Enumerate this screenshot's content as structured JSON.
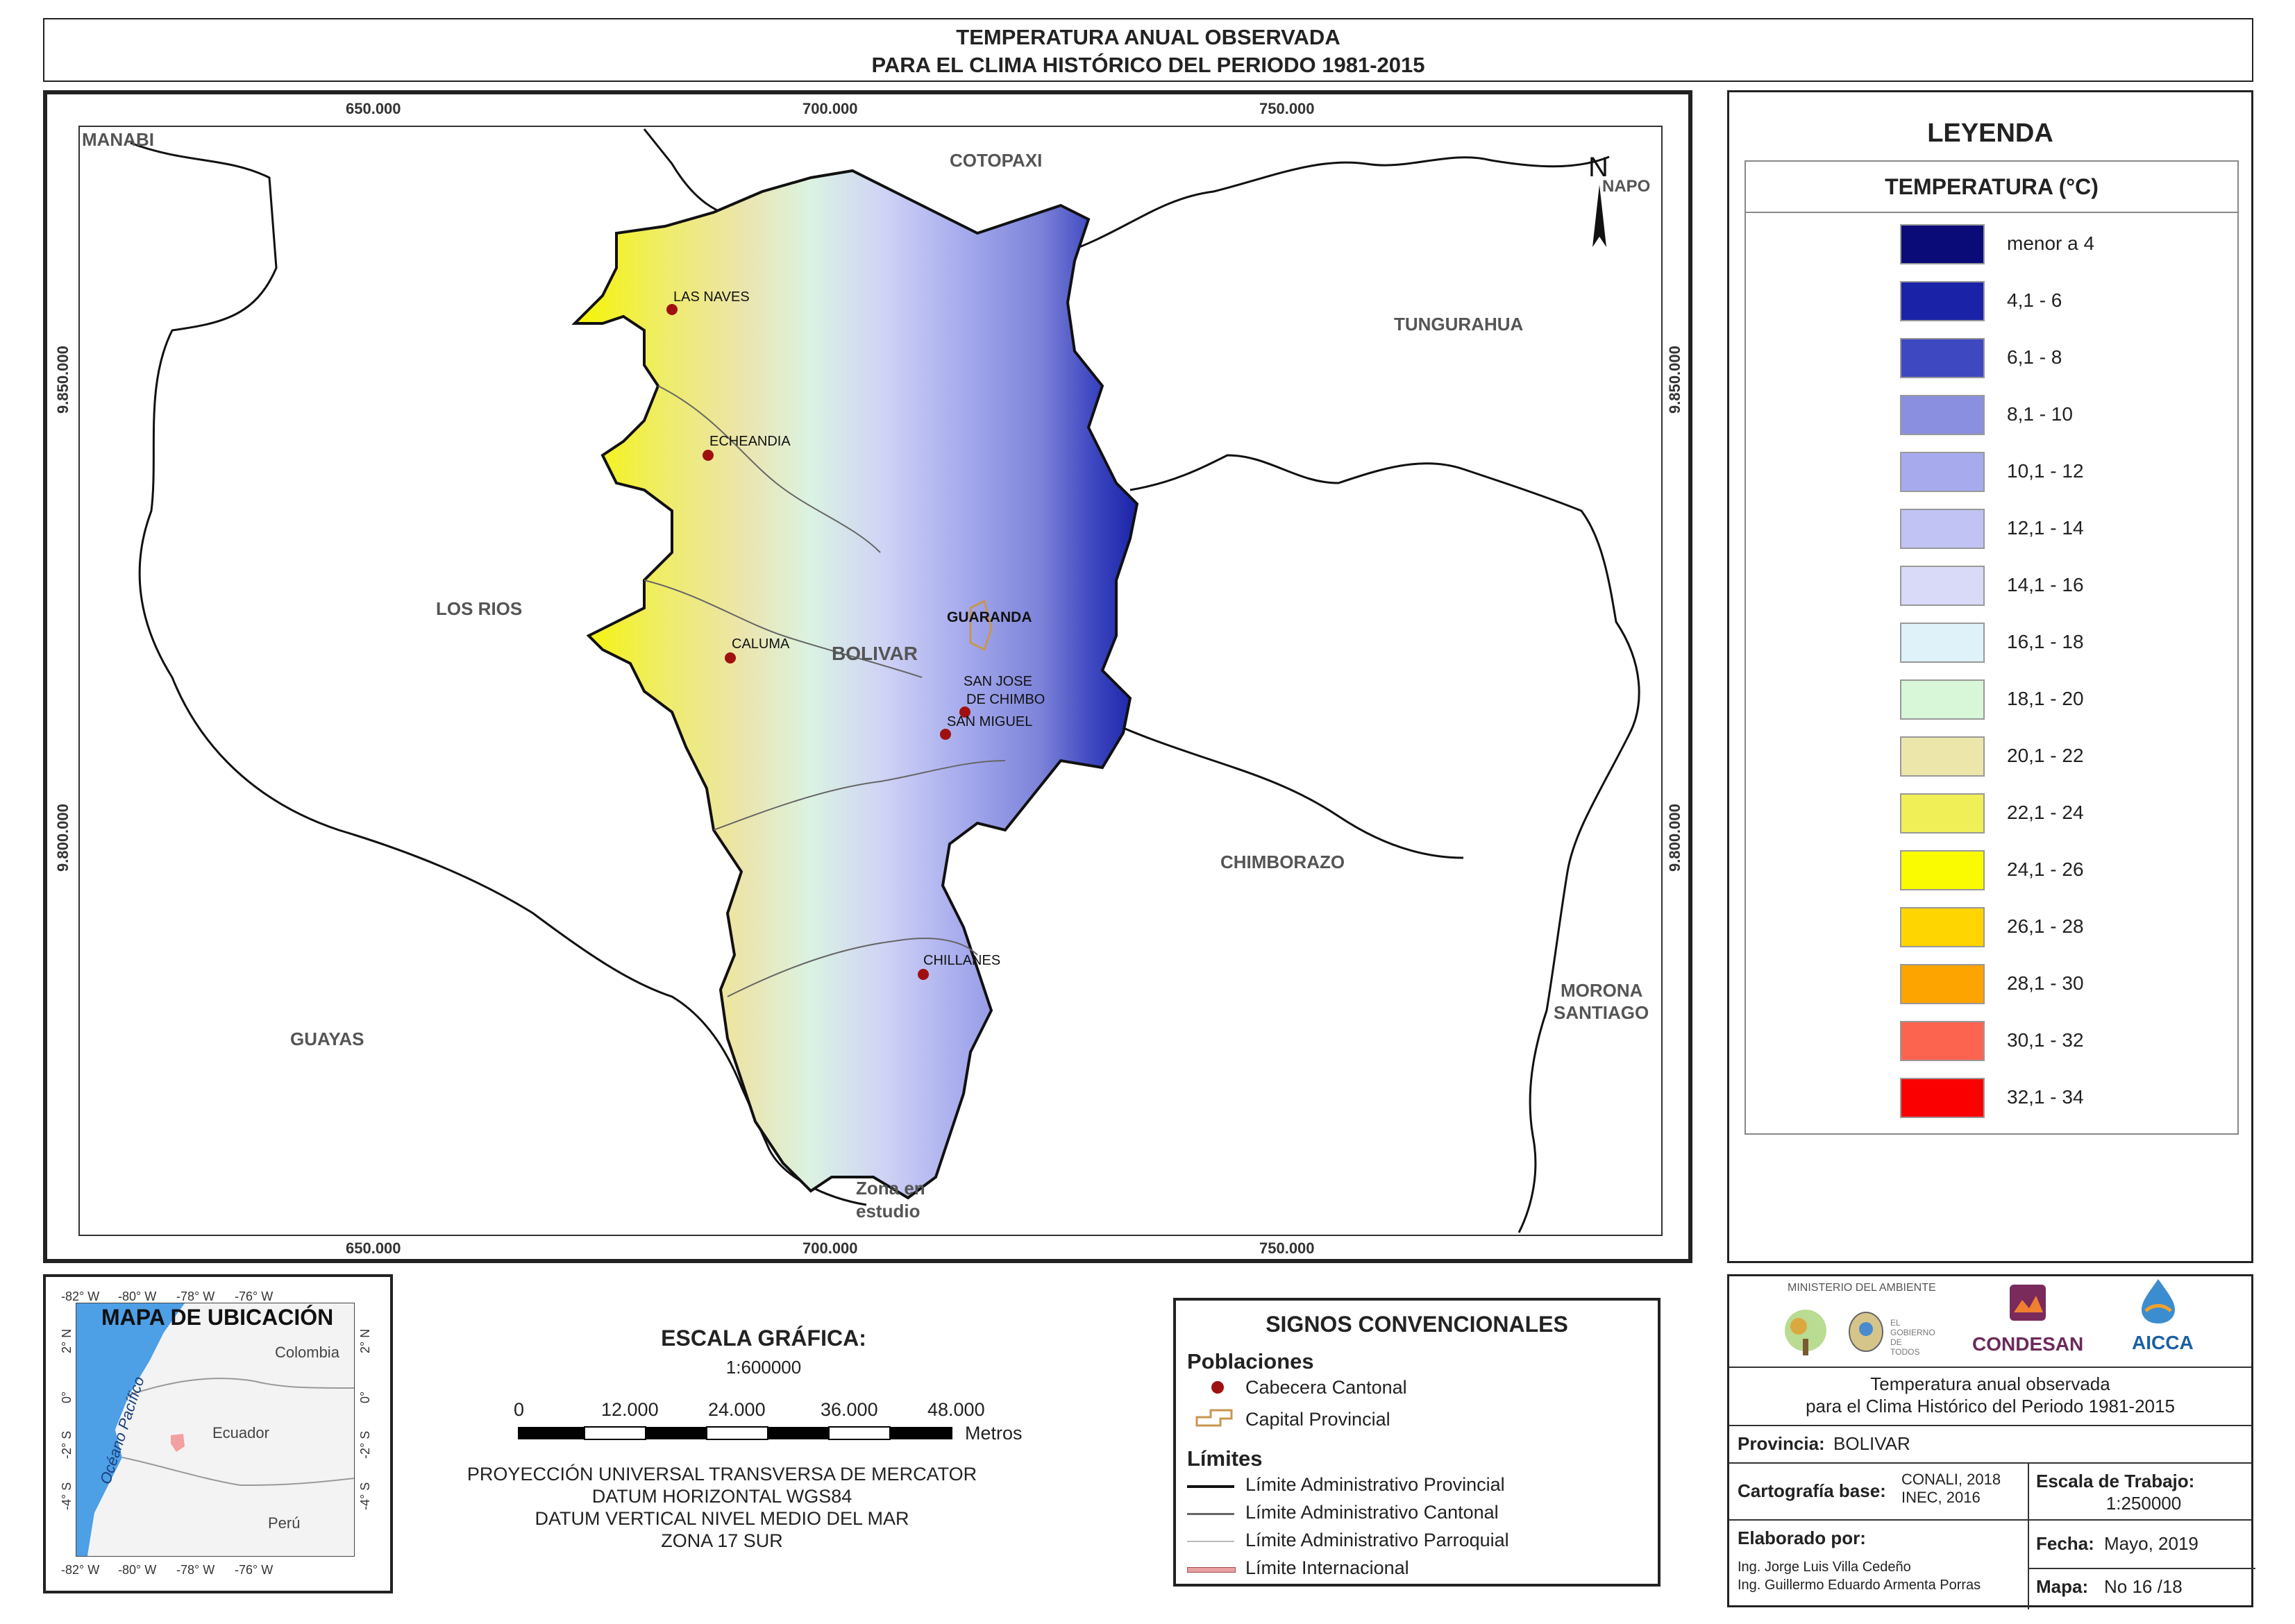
{
  "title": {
    "line1": "TEMPERATURA ANUAL OBSERVADA",
    "line2": "PARA EL CLIMA HISTÓRICO DEL PERIODO 1981-2015"
  },
  "map": {
    "x_coords": [
      "650.000",
      "700.000",
      "750.000"
    ],
    "y_coords": [
      "9.850.000",
      "9.800.000"
    ],
    "north": "N",
    "regions": [
      "MANABI",
      "COTOPAXI",
      "NAPO",
      "TUNGURAHUA",
      "LOS RIOS",
      "BOLIVAR",
      "CHIMBORAZO",
      "MORONA SANTIAGO",
      "GUAYAS"
    ],
    "region_morona_line1": "MORONA",
    "region_morona_line2": "SANTIAGO",
    "zone_line1": "Zona en",
    "zone_line2": "estudio",
    "capital": "GUARANDA",
    "towns": [
      "LAS NAVES",
      "ECHEANDIA",
      "CALUMA",
      "SAN JOSE",
      "DE CHIMBO",
      "SAN MIGUEL",
      "CHILLANES"
    ]
  },
  "legend": {
    "title": "LEYENDA",
    "subtitle": "TEMPERATURA (°C)",
    "items": [
      {
        "label": "menor a 4",
        "color": "#0a0a78"
      },
      {
        "label": "4,1 - 6",
        "color": "#1a23a8"
      },
      {
        "label": "6,1 - 8",
        "color": "#3e48c0"
      },
      {
        "label": "8,1 - 10",
        "color": "#8a8fe0"
      },
      {
        "label": "10,1 - 12",
        "color": "#a7abee"
      },
      {
        "label": "12,1 - 14",
        "color": "#c1c3f4"
      },
      {
        "label": "14,1 - 16",
        "color": "#d9daf7"
      },
      {
        "label": "16,1 - 18",
        "color": "#dff2fa"
      },
      {
        "label": "18,1 - 20",
        "color": "#d8f6d8"
      },
      {
        "label": "20,1 - 22",
        "color": "#ece6ab"
      },
      {
        "label": "22,1 - 24",
        "color": "#f1ef57"
      },
      {
        "label": "24,1 - 26",
        "color": "#fbfb00"
      },
      {
        "label": "26,1 - 28",
        "color": "#fed500"
      },
      {
        "label": "28,1 - 30",
        "color": "#fea400"
      },
      {
        "label": "30,1 - 32",
        "color": "#fd6450"
      },
      {
        "label": "32,1 - 34",
        "color": "#fb0000"
      }
    ]
  },
  "location_map": {
    "title": "MAPA DE UBICACIÓN",
    "lon_ticks": [
      "-82° W",
      "-80° W",
      "-78° W",
      "-76° W"
    ],
    "lat_ticks": [
      "2° N",
      "0°",
      "-2° S",
      "-4° S"
    ],
    "ocean": "Océano Pacífico",
    "countries": [
      "Colombia",
      "Ecuador",
      "Perú"
    ]
  },
  "scale": {
    "title": "ESCALA GRÁFICA:",
    "ratio": "1:600000",
    "ticks": [
      "0",
      "12.000",
      "24.000",
      "36.000",
      "48.000"
    ],
    "unit": "Metros",
    "projection": [
      "PROYECCIÓN UNIVERSAL TRANSVERSA DE MERCATOR",
      "DATUM HORIZONTAL WGS84",
      "DATUM VERTICAL NIVEL MEDIO DEL MAR",
      "ZONA 17 SUR"
    ]
  },
  "signs": {
    "title": "SIGNOS CONVENCIONALES",
    "populations_heading": "Poblaciones",
    "cabecera": "Cabecera Cantonal",
    "capital": "Capital Provincial",
    "limits_heading": "Límites",
    "limits": [
      "Límite Administrativo Provincial",
      "Límite Administrativo Cantonal",
      "Límite Administrativo Parroquial",
      "Límite Internacional"
    ]
  },
  "info": {
    "logos": [
      "MINISTERIO DEL AMBIENTE",
      "EL GOBIERNO DE TODOS",
      "CONDESAN",
      "AICCA"
    ],
    "description_line1": "Temperatura anual observada",
    "description_line2": "para el Clima Histórico del Periodo 1981-2015",
    "provincia_label": "Provincia:",
    "provincia_value": "BOLIVAR",
    "cartografia_label": "Cartografía base:",
    "cartografia_value1": "CONALI, 2018",
    "cartografia_value2": "INEC, 2016",
    "escala_label": "Escala de Trabajo:",
    "escala_value": "1:250000",
    "elaborado_label": "Elaborado por:",
    "autores": [
      "Ing. Jorge Luis Villa Cedeño",
      "Ing. Guillermo Eduardo Armenta Porras"
    ],
    "fecha_label": "Fecha:",
    "fecha_value": "Mayo, 2019",
    "mapa_label": "Mapa:",
    "mapa_value": "No 16 /18"
  }
}
